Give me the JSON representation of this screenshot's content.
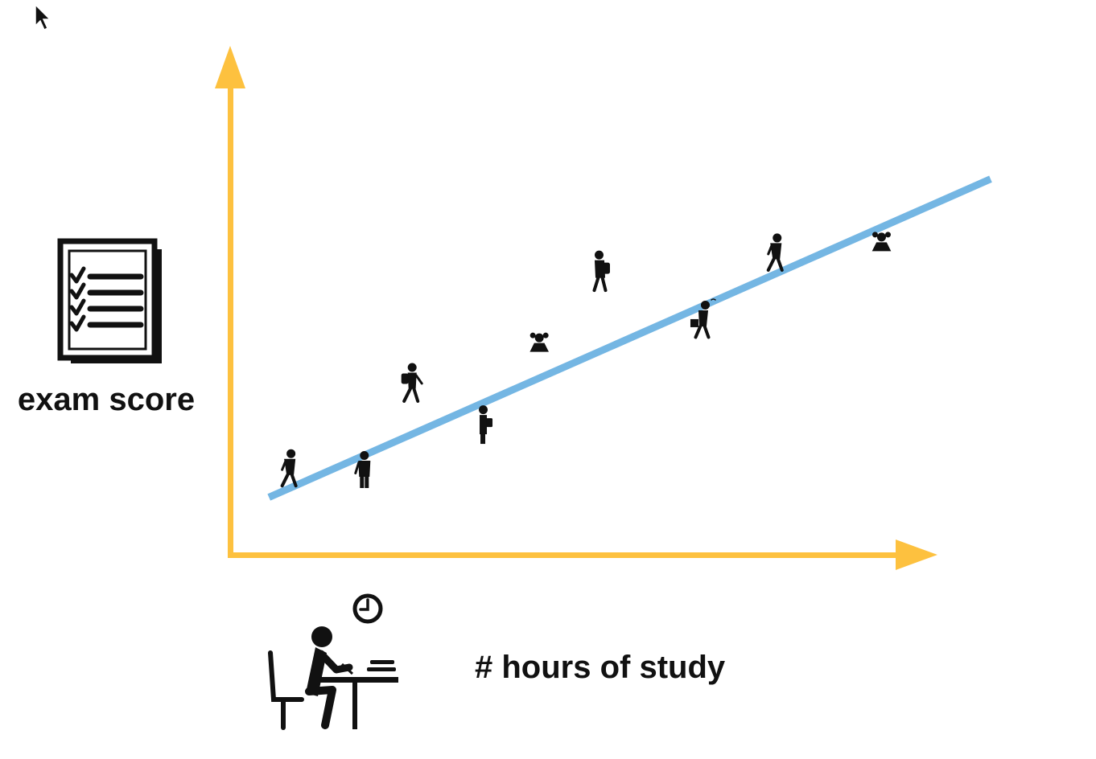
{
  "labels": {
    "y_axis": "exam score",
    "x_axis": "# hours of study"
  },
  "colors": {
    "axis": "#FDC13F",
    "trend_line": "#74B6E3",
    "icon": "#111111"
  },
  "icons": {
    "y_axis": "exam-checklist-icon",
    "x_axis": "student-studying-at-desk-icon",
    "clock": "clock-icon",
    "cursor": "mouse-pointer-icon"
  },
  "chart_data": {
    "type": "scatter",
    "title": "",
    "xlabel": "# hours of study",
    "ylabel": "exam score",
    "grid": false,
    "legend": "none",
    "xlim": [
      0,
      1
    ],
    "ylim": [
      0,
      1
    ],
    "trend_line": {
      "x": [
        0.047,
        1.0
      ],
      "y": [
        0.125,
        0.817
      ]
    },
    "points": [
      {
        "x": 0.074,
        "y": 0.15,
        "marker": "walking-student-icon"
      },
      {
        "x": 0.173,
        "y": 0.146,
        "marker": "standing-student-icon"
      },
      {
        "x": 0.234,
        "y": 0.334,
        "marker": "hiker-student-icon"
      },
      {
        "x": 0.33,
        "y": 0.242,
        "marker": "student-with-bag-icon"
      },
      {
        "x": 0.404,
        "y": 0.442,
        "marker": "girl-bust-icon"
      },
      {
        "x": 0.483,
        "y": 0.575,
        "marker": "girl-with-backpack-icon"
      },
      {
        "x": 0.619,
        "y": 0.473,
        "marker": "reading-student-icon"
      },
      {
        "x": 0.716,
        "y": 0.619,
        "marker": "walking-student-icon"
      },
      {
        "x": 0.856,
        "y": 0.661,
        "marker": "girl-bust-icon"
      }
    ]
  }
}
